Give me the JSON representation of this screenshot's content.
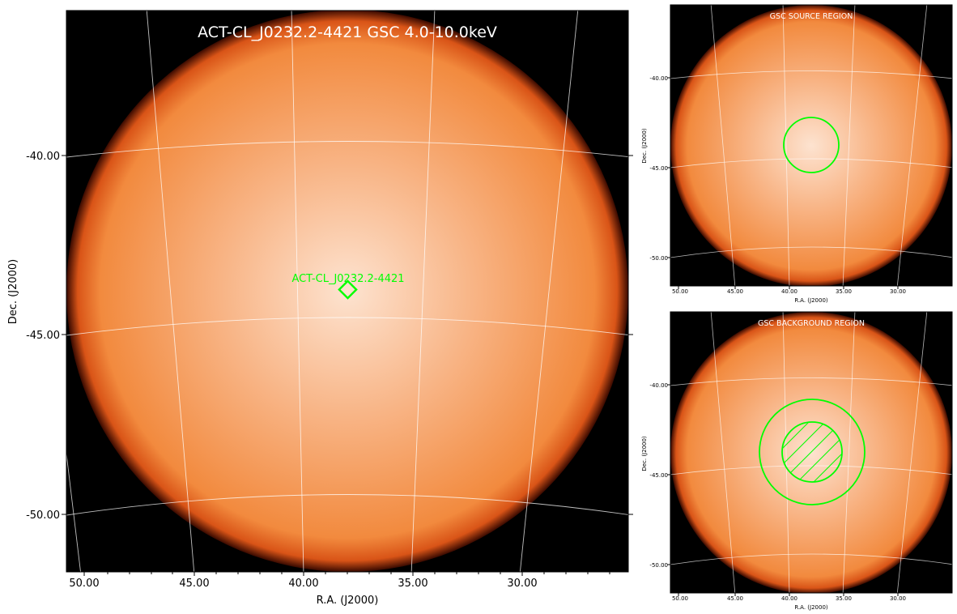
{
  "main": {
    "title": "ACT-CL_J0232.2-4421 GSC 4.0-10.0keV",
    "source_label": "ACT-CL_J0232.2-4421",
    "xlabel": "R.A. (J2000)",
    "ylabel": "Dec. (J2000)",
    "xticks": [
      "50.00",
      "45.00",
      "40.00",
      "35.00",
      "30.00"
    ],
    "yticks": [
      "-40.00",
      "-45.00",
      "-50.00"
    ]
  },
  "source_panel": {
    "title": "GSC SOURCE REGION",
    "xlabel": "R.A. (J2000)",
    "ylabel": "Dec. (J2000)",
    "xticks": [
      "50.00",
      "45.00",
      "40.00",
      "35.00",
      "30.00"
    ],
    "yticks": [
      "-40.00",
      "-45.00",
      "-50.00"
    ]
  },
  "background_panel": {
    "title": "GSC BACKGROUND REGION",
    "xlabel": "R.A. (J2000)",
    "ylabel": "Dec. (J2000)",
    "xticks": [
      "50.00",
      "45.00",
      "40.00",
      "35.00",
      "30.00"
    ],
    "yticks": [
      "-40.00",
      "-45.00",
      "-50.00"
    ]
  },
  "colors": {
    "background": "#000000",
    "disk": "#f4924a",
    "disk_center": "#fbd9c1",
    "region": "#00ff00",
    "title_text": "#ffffff"
  }
}
